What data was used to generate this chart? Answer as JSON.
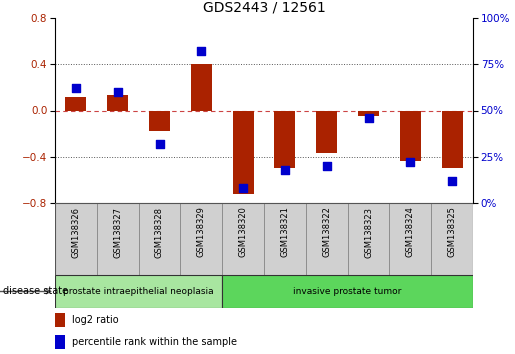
{
  "title": "GDS2443 / 12561",
  "samples": [
    "GSM138326",
    "GSM138327",
    "GSM138328",
    "GSM138329",
    "GSM138320",
    "GSM138321",
    "GSM138322",
    "GSM138323",
    "GSM138324",
    "GSM138325"
  ],
  "log2_ratio": [
    0.12,
    0.13,
    -0.18,
    0.4,
    -0.72,
    -0.5,
    -0.37,
    -0.05,
    -0.44,
    -0.5
  ],
  "percentile_rank": [
    62,
    60,
    32,
    82,
    8,
    18,
    20,
    46,
    22,
    12
  ],
  "disease_groups": [
    {
      "label": "prostate intraepithelial neoplasia",
      "start": 0,
      "end": 4,
      "color": "#a8e6a0"
    },
    {
      "label": "invasive prostate tumor",
      "start": 4,
      "end": 10,
      "color": "#5cd65c"
    }
  ],
  "ylim_left": [
    -0.8,
    0.8
  ],
  "yticks_left": [
    -0.8,
    -0.4,
    0.0,
    0.4,
    0.8
  ],
  "yticks_right": [
    0,
    25,
    50,
    75,
    100
  ],
  "bar_color": "#aa2200",
  "dot_color": "#0000cc",
  "zero_line_color": "#cc4444",
  "dotted_line_color": "#555555",
  "sample_box_color": "#d0d0d0",
  "legend_log2": "log2 ratio",
  "legend_pct": "percentile rank within the sample",
  "disease_state_label": "disease state"
}
